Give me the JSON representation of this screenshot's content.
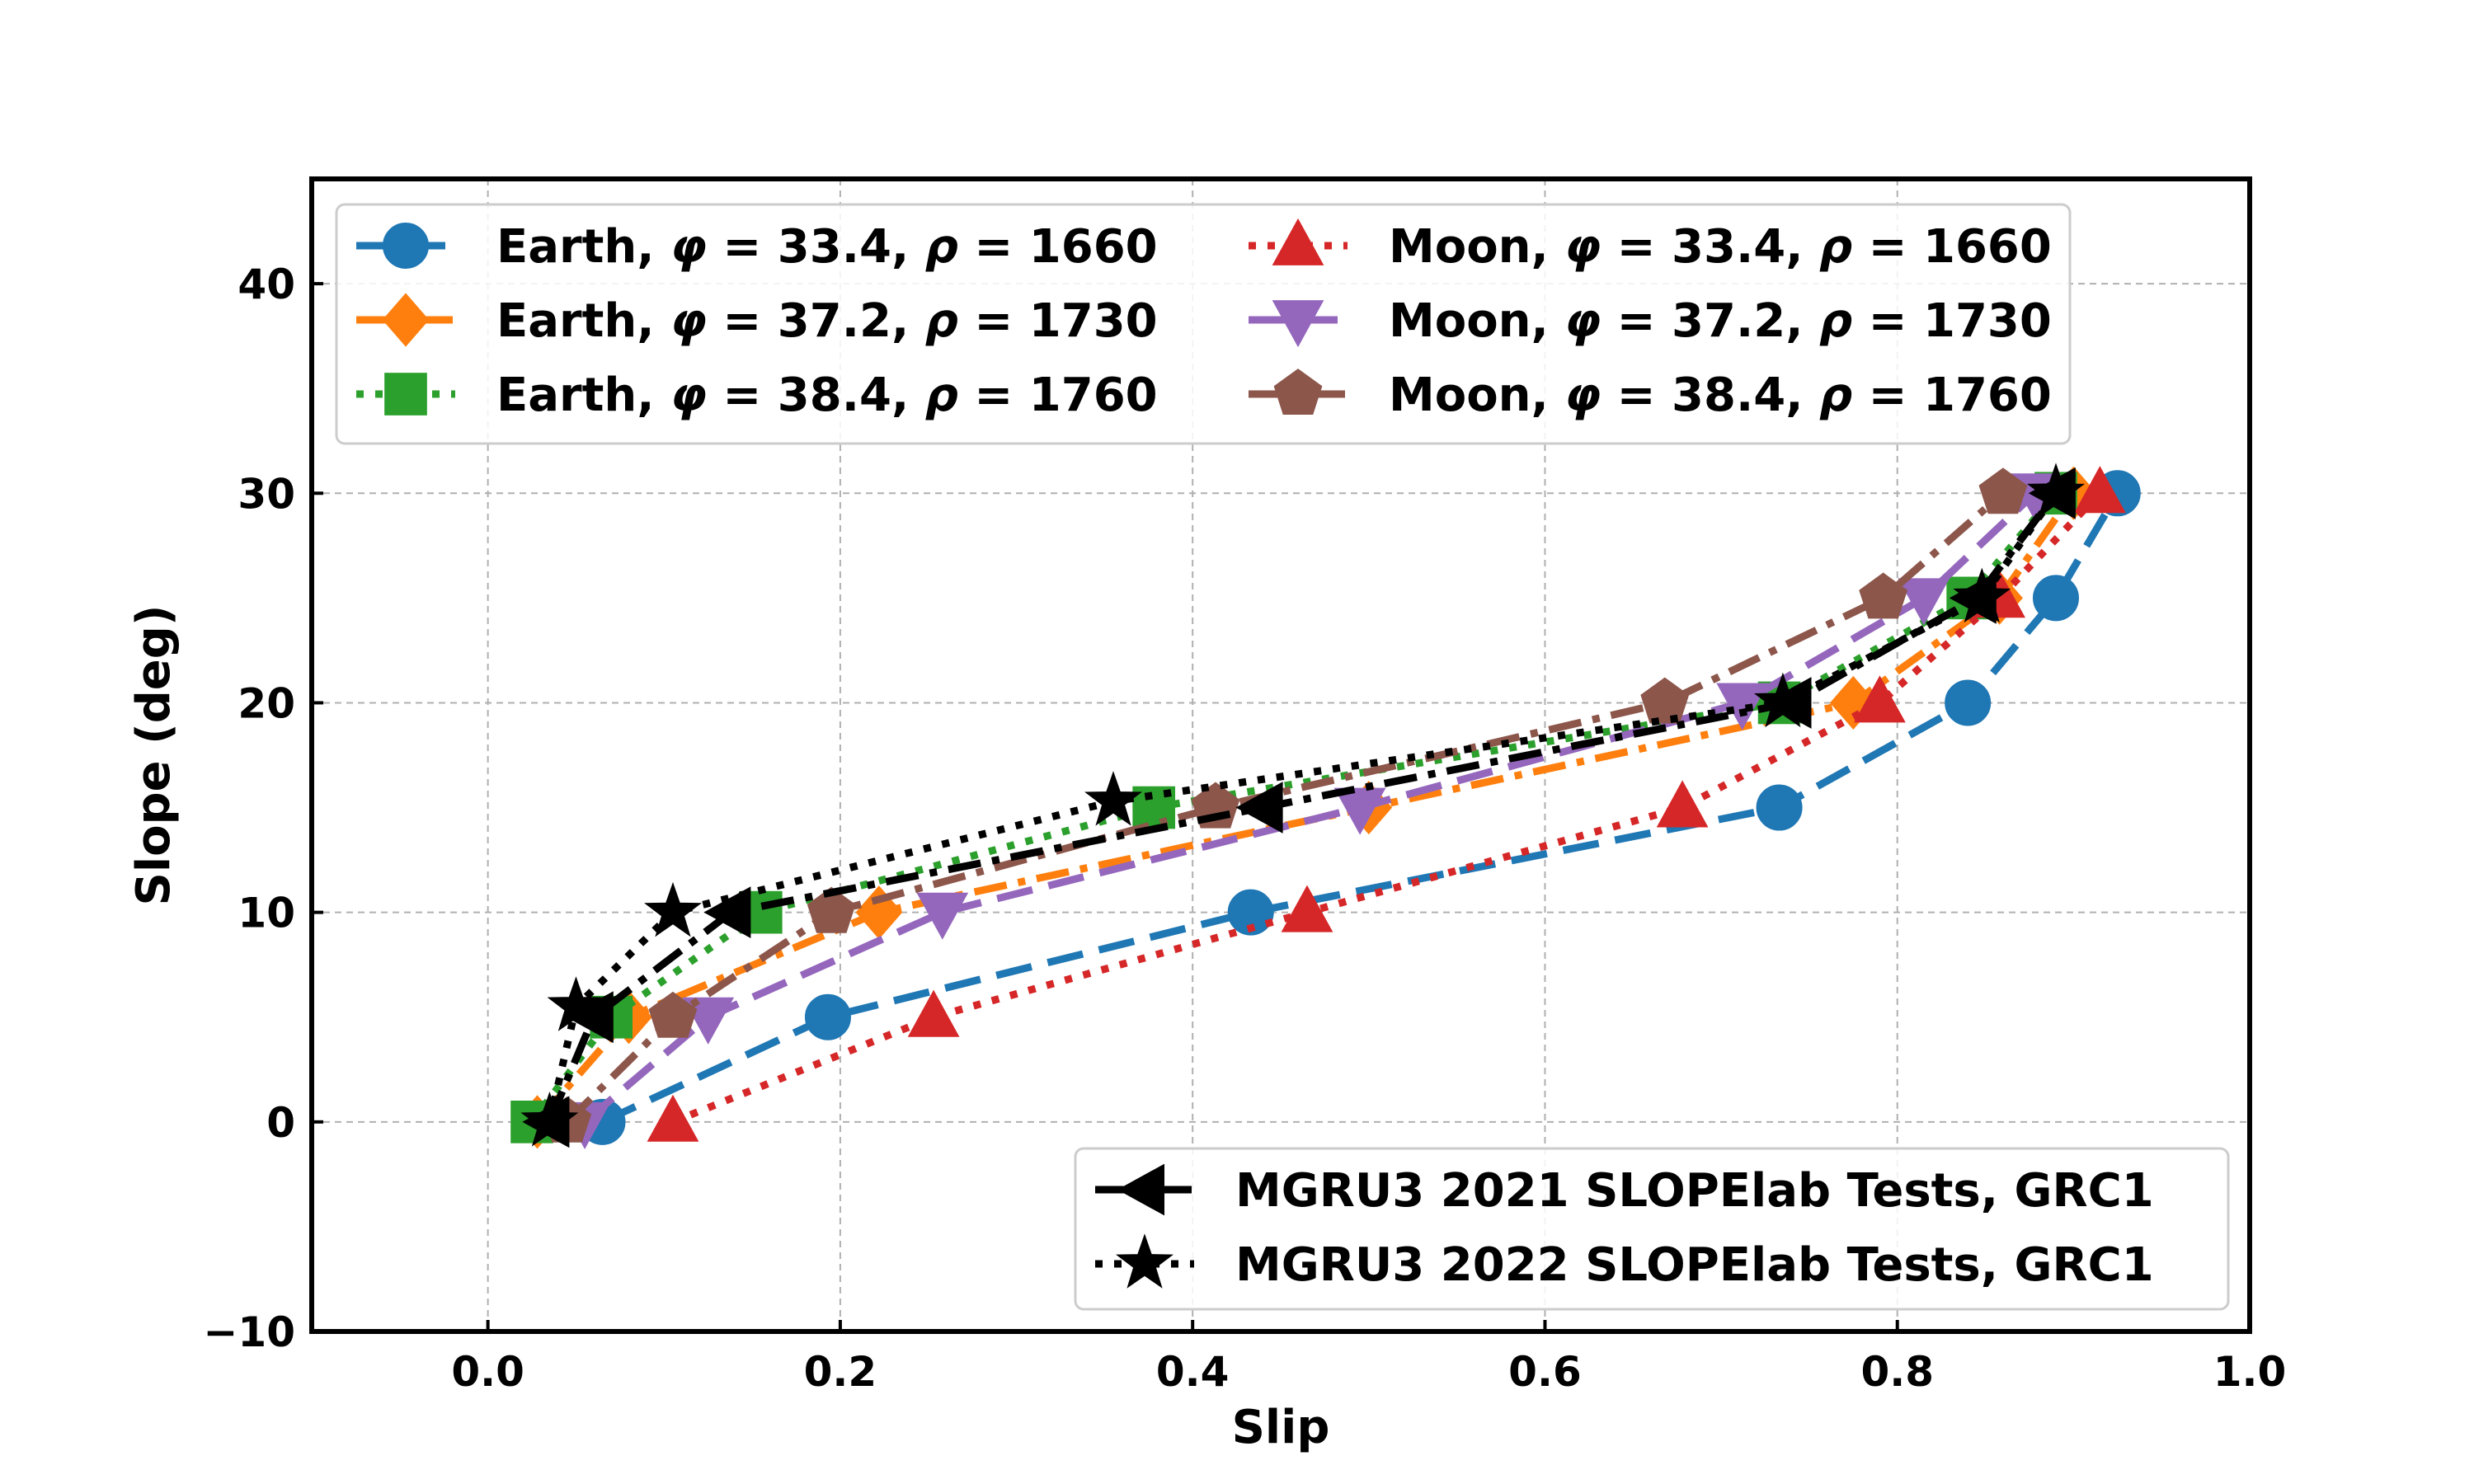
{
  "chart_data": {
    "type": "line",
    "title": "",
    "xlabel": "Slip",
    "ylabel": "Slope (deg)",
    "xlim": [
      -0.1,
      1.0
    ],
    "ylim": [
      -10,
      45
    ],
    "grid": true,
    "xticks": [
      0.0,
      0.2,
      0.4,
      0.6,
      0.8,
      1.0
    ],
    "xtick_labels": [
      "0.0",
      "0.2",
      "0.4",
      "0.6",
      "0.8",
      "1.0"
    ],
    "yticks": [
      -10,
      0,
      10,
      20,
      30,
      40
    ],
    "ytick_labels": [
      "−10",
      "0",
      "10",
      "20",
      "30",
      "40"
    ],
    "legend_top_position": "top-left",
    "legend_bottom_position": "bottom-right",
    "series": [
      {
        "name": "Earth, φ = 33.4, ρ = 1660",
        "legend": {
          "body": "Earth, ",
          "phi": "33.4",
          "rho": "1660"
        },
        "color": "#1f77b4",
        "marker": "circle",
        "line": "dashed",
        "legend_group": "top",
        "x": [
          0.065,
          0.193,
          0.433,
          0.733,
          0.84,
          0.89,
          0.925
        ],
        "y": [
          0,
          5,
          10,
          15,
          20,
          25,
          30
        ]
      },
      {
        "name": "Earth, φ = 37.2, ρ = 1730",
        "legend": {
          "body": "Earth, ",
          "phi": "37.2",
          "rho": "1730"
        },
        "color": "#ff7f0e",
        "marker": "diamond",
        "line": "dashdot",
        "legend_group": "top",
        "x": [
          0.028,
          0.08,
          0.222,
          0.5,
          0.775,
          0.858,
          0.9
        ],
        "y": [
          0,
          5,
          10,
          15,
          20,
          25,
          30
        ]
      },
      {
        "name": "Earth, φ = 38.4, ρ = 1760",
        "legend": {
          "body": "Earth, ",
          "phi": "38.4",
          "rho": "1760"
        },
        "color": "#2ca02c",
        "marker": "square",
        "line": "dotted",
        "legend_group": "top",
        "x": [
          0.025,
          0.07,
          0.155,
          0.378,
          0.733,
          0.84,
          0.89
        ],
        "y": [
          0,
          5,
          10,
          15,
          20,
          25,
          30
        ]
      },
      {
        "name": "Moon, φ = 33.4, ρ = 1660",
        "legend": {
          "body": "Moon, ",
          "phi": "33.4",
          "rho": "1660"
        },
        "color": "#d62728",
        "marker": "triangle-up",
        "line": "dotted",
        "legend_group": "top",
        "x": [
          0.105,
          0.253,
          0.465,
          0.678,
          0.79,
          0.858,
          0.915
        ],
        "y": [
          0,
          5,
          10,
          15,
          20,
          25,
          30
        ]
      },
      {
        "name": "Moon, φ = 37.2, ρ = 1730",
        "legend": {
          "body": "Moon, ",
          "phi": "37.2",
          "rho": "1730"
        },
        "color": "#9467bd",
        "marker": "triangle-down",
        "line": "dashed",
        "legend_group": "top",
        "x": [
          0.055,
          0.125,
          0.258,
          0.495,
          0.712,
          0.815,
          0.878
        ],
        "y": [
          0,
          5,
          10,
          15,
          20,
          25,
          30
        ]
      },
      {
        "name": "Moon, φ = 38.4, ρ = 1760",
        "legend": {
          "body": "Moon, ",
          "phi": "38.4",
          "rho": "1760"
        },
        "color": "#8c564b",
        "marker": "pentagon",
        "line": "dashdot",
        "legend_group": "top",
        "x": [
          0.045,
          0.105,
          0.195,
          0.413,
          0.668,
          0.792,
          0.86
        ],
        "y": [
          0,
          5,
          10,
          15,
          20,
          25,
          30
        ]
      },
      {
        "name": "MGRU3 2021 SLOPElab Tests, GRC1",
        "legend": {
          "body": "MGRU3 2021 SLOPElab Tests, GRC1"
        },
        "color": "#000000",
        "marker": "triangle-left",
        "line": "dashdot",
        "legend_group": "bottom",
        "x": [
          0.035,
          0.06,
          0.138,
          0.44,
          0.74,
          0.845,
          0.89
        ],
        "y": [
          0,
          5,
          10,
          15,
          20,
          25,
          30
        ]
      },
      {
        "name": "MGRU3 2022 SLOPElab Tests, GRC1",
        "legend": {
          "body": "MGRU3 2022 SLOPElab Tests, GRC1"
        },
        "color": "#000000",
        "marker": "star",
        "line": "dotted",
        "legend_group": "bottom",
        "x": [
          0.035,
          0.05,
          0.105,
          0.355,
          0.735,
          0.848,
          0.89
        ],
        "y": [
          0,
          5.5,
          10,
          15.3,
          20,
          25,
          30
        ]
      }
    ]
  }
}
